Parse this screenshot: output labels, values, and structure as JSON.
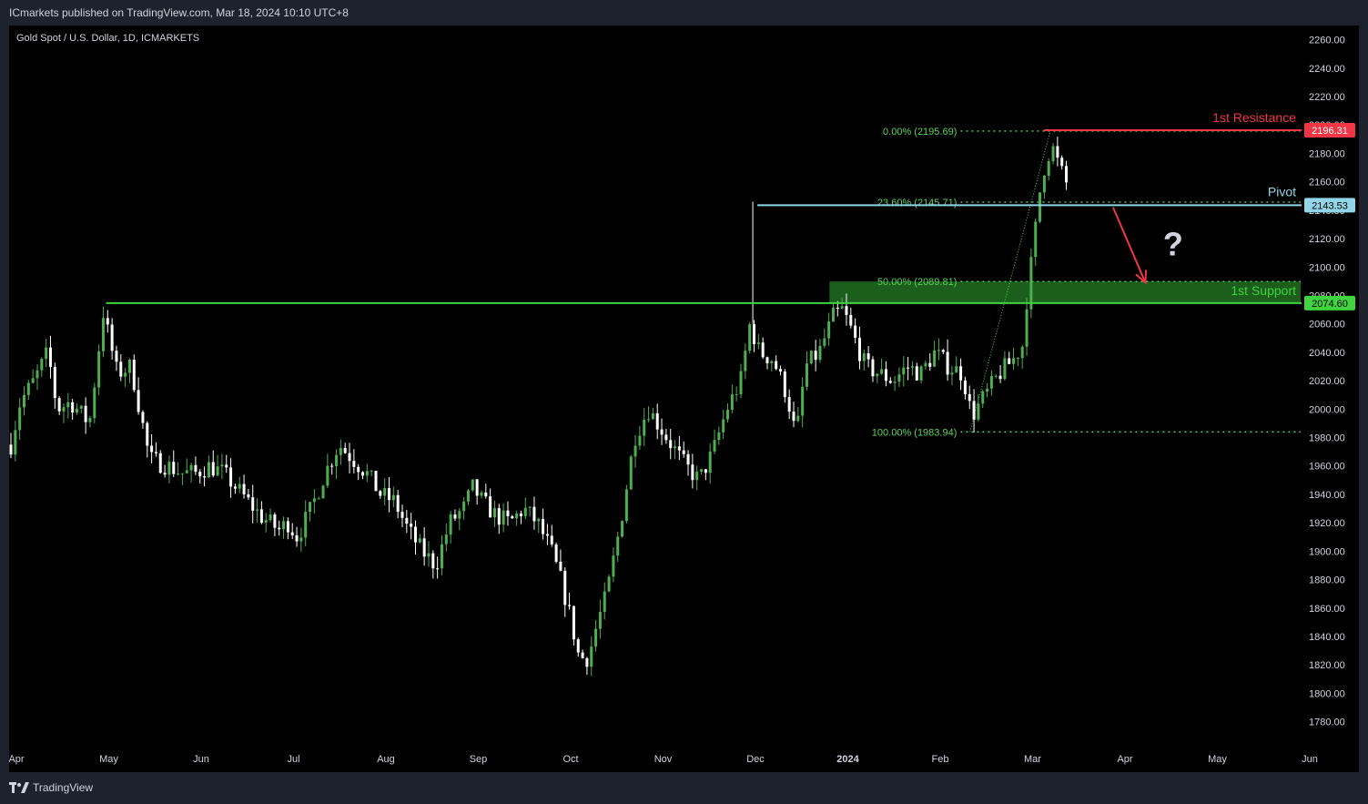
{
  "header": {
    "published_line": "ICmarkets published on TradingView.com, Mar 18, 2024 10:10 UTC+8"
  },
  "chart": {
    "symbol_title": "Gold Spot / U.S. Dollar, 1D, ICMARKETS"
  },
  "footer": {
    "brand_label": "TradingView"
  },
  "colors": {
    "background": "#000000",
    "frame": "#1e222d",
    "candle_up": "#4caf50",
    "candle_down": "#ffffff",
    "resistance": "#f23645",
    "pivot": "#90d5e8",
    "support": "#3fd33f",
    "support_zone": "#1c5e1c",
    "fib": "#5bd35b",
    "arrow": "#f23645",
    "question_mark": "#d1d4dc"
  },
  "chart_data": {
    "type": "candlestick",
    "title": "Gold Spot / U.S. Dollar, 1D, ICMARKETS",
    "ylim": [
      1765,
      2270
    ],
    "y_ticks": [
      "2260.00",
      "2240.00",
      "2220.00",
      "2200.00",
      "2180.00",
      "2160.00",
      "2140.00",
      "2120.00",
      "2100.00",
      "2080.00",
      "2060.00",
      "2040.00",
      "2020.00",
      "2000.00",
      "1980.00",
      "1960.00",
      "1940.00",
      "1920.00",
      "1900.00",
      "1880.00",
      "1860.00",
      "1840.00",
      "1820.00",
      "1800.00",
      "1780.00"
    ],
    "x_labels": [
      {
        "label": "Apr",
        "month_index": 0
      },
      {
        "label": "May",
        "month_index": 1
      },
      {
        "label": "Jun",
        "month_index": 2
      },
      {
        "label": "Jul",
        "month_index": 3
      },
      {
        "label": "Aug",
        "month_index": 4
      },
      {
        "label": "Sep",
        "month_index": 5
      },
      {
        "label": "Oct",
        "month_index": 6
      },
      {
        "label": "Nov",
        "month_index": 7
      },
      {
        "label": "Dec",
        "month_index": 8
      },
      {
        "label": "2024",
        "month_index": 9,
        "bold": true
      },
      {
        "label": "Feb",
        "month_index": 10
      },
      {
        "label": "Mar",
        "month_index": 11
      },
      {
        "label": "Apr",
        "month_index": 12
      },
      {
        "label": "May",
        "month_index": 13
      },
      {
        "label": "Jun",
        "month_index": 14
      }
    ],
    "price_path": [
      [
        0,
        1975
      ],
      [
        0.1,
        2005
      ],
      [
        0.25,
        2020
      ],
      [
        0.4,
        2040
      ],
      [
        0.5,
        2000
      ],
      [
        0.65,
        2005
      ],
      [
        0.85,
        1990
      ],
      [
        1.0,
        2068
      ],
      [
        1.15,
        2025
      ],
      [
        1.3,
        2030
      ],
      [
        1.5,
        1965
      ],
      [
        1.7,
        1960
      ],
      [
        1.85,
        1955
      ],
      [
        2.0,
        1955
      ],
      [
        2.15,
        1960
      ],
      [
        2.3,
        1955
      ],
      [
        2.5,
        1940
      ],
      [
        2.7,
        1925
      ],
      [
        2.9,
        1915
      ],
      [
        3.0,
        1920
      ],
      [
        3.1,
        1910
      ],
      [
        3.25,
        1930
      ],
      [
        3.4,
        1955
      ],
      [
        3.55,
        1975
      ],
      [
        3.7,
        1965
      ],
      [
        3.85,
        1955
      ],
      [
        4.0,
        1940
      ],
      [
        4.15,
        1935
      ],
      [
        4.3,
        1915
      ],
      [
        4.45,
        1900
      ],
      [
        4.6,
        1890
      ],
      [
        4.75,
        1920
      ],
      [
        4.9,
        1930
      ],
      [
        5.0,
        1945
      ],
      [
        5.1,
        1935
      ],
      [
        5.25,
        1925
      ],
      [
        5.4,
        1920
      ],
      [
        5.55,
        1930
      ],
      [
        5.7,
        1920
      ],
      [
        5.85,
        1900
      ],
      [
        5.95,
        1880
      ],
      [
        6.05,
        1855
      ],
      [
        6.15,
        1825
      ],
      [
        6.25,
        1825
      ],
      [
        6.35,
        1850
      ],
      [
        6.45,
        1870
      ],
      [
        6.6,
        1920
      ],
      [
        6.75,
        1980
      ],
      [
        6.9,
        2000
      ],
      [
        7.0,
        1990
      ],
      [
        7.15,
        1975
      ],
      [
        7.3,
        1960
      ],
      [
        7.45,
        1950
      ],
      [
        7.6,
        1970
      ],
      [
        7.75,
        2000
      ],
      [
        7.9,
        2020
      ],
      [
        8.0,
        2060
      ],
      [
        8.1,
        2040
      ],
      [
        8.25,
        2035
      ],
      [
        8.4,
        2010
      ],
      [
        8.5,
        1980
      ],
      [
        8.6,
        2030
      ],
      [
        8.75,
        2040
      ],
      [
        8.9,
        2065
      ],
      [
        9.0,
        2070
      ],
      [
        9.1,
        2055
      ],
      [
        9.25,
        2030
      ],
      [
        9.4,
        2025
      ],
      [
        9.55,
        2020
      ],
      [
        9.7,
        2030
      ],
      [
        9.85,
        2025
      ],
      [
        10.0,
        2040
      ],
      [
        10.15,
        2030
      ],
      [
        10.3,
        2025
      ],
      [
        10.4,
        1995
      ],
      [
        10.55,
        2010
      ],
      [
        10.7,
        2025
      ],
      [
        10.85,
        2035
      ],
      [
        10.95,
        2045
      ],
      [
        11.0,
        2080
      ],
      [
        11.07,
        2115
      ],
      [
        11.13,
        2150
      ],
      [
        11.2,
        2175
      ],
      [
        11.27,
        2185
      ],
      [
        11.35,
        2170
      ],
      [
        11.43,
        2158
      ]
    ],
    "levels": [
      {
        "name": "1st Resistance",
        "value": 2196.31,
        "price_label": "2196.31"
      },
      {
        "name": "Pivot",
        "value": 2143.53,
        "price_label": "2143.53"
      },
      {
        "name": "1st Support",
        "value": 2074.6,
        "price_label": "2074.60",
        "zone_top": 2089.81
      }
    ],
    "fibonacci": [
      {
        "label": "0.00% (2195.69)",
        "value": 2195.69
      },
      {
        "label": "23.60% (2145.71)",
        "value": 2145.71
      },
      {
        "label": "50.00% (2089.81)",
        "value": 2089.81
      },
      {
        "label": "100.00% (1983.94)",
        "value": 1983.94
      }
    ],
    "annotations": [
      {
        "type": "arrow",
        "from": {
          "month_index": 11.95,
          "value": 2142
        },
        "to": {
          "month_index": 12.3,
          "value": 2089
        }
      },
      {
        "type": "text",
        "text": "?",
        "month_index": 12.6,
        "value": 2117
      }
    ]
  }
}
